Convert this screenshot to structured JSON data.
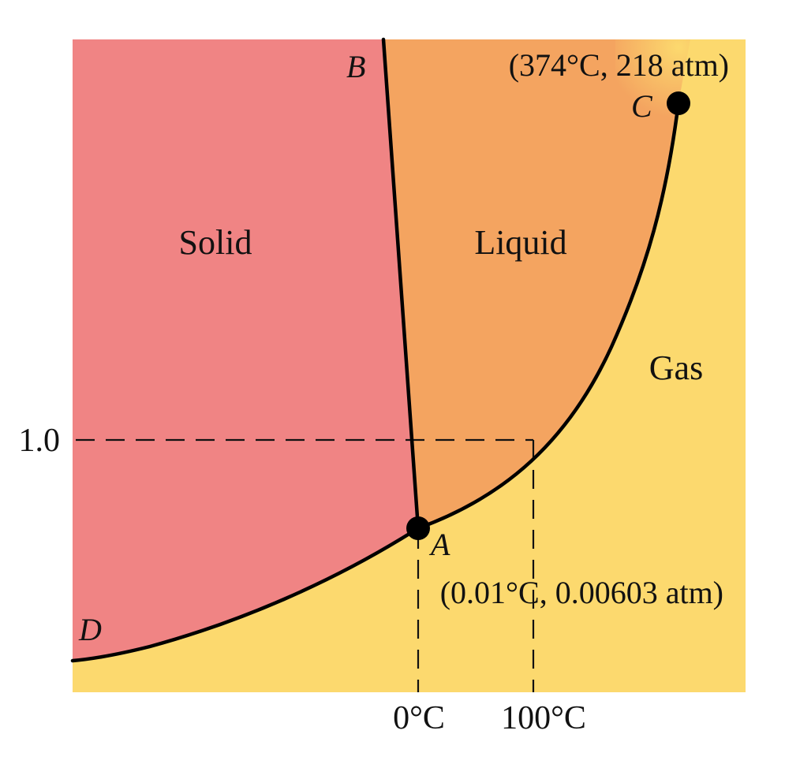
{
  "regions": {
    "solid": "Solid",
    "liquid": "Liquid",
    "gas": "Gas"
  },
  "points": {
    "a": {
      "letter": "A",
      "annotation": "(0.01°C, 0.00603 atm)"
    },
    "b": {
      "letter": "B"
    },
    "c": {
      "letter": "C",
      "annotation": "(374°C, 218 atm)"
    },
    "d": {
      "letter": "D"
    }
  },
  "axes": {
    "y_tick": "1.0",
    "x_ticks": [
      "0°C",
      "100°C"
    ]
  },
  "colors": {
    "solid": "#f08484",
    "liquid": "#f4a460",
    "gas": "#fcd96e",
    "line": "#000000"
  }
}
